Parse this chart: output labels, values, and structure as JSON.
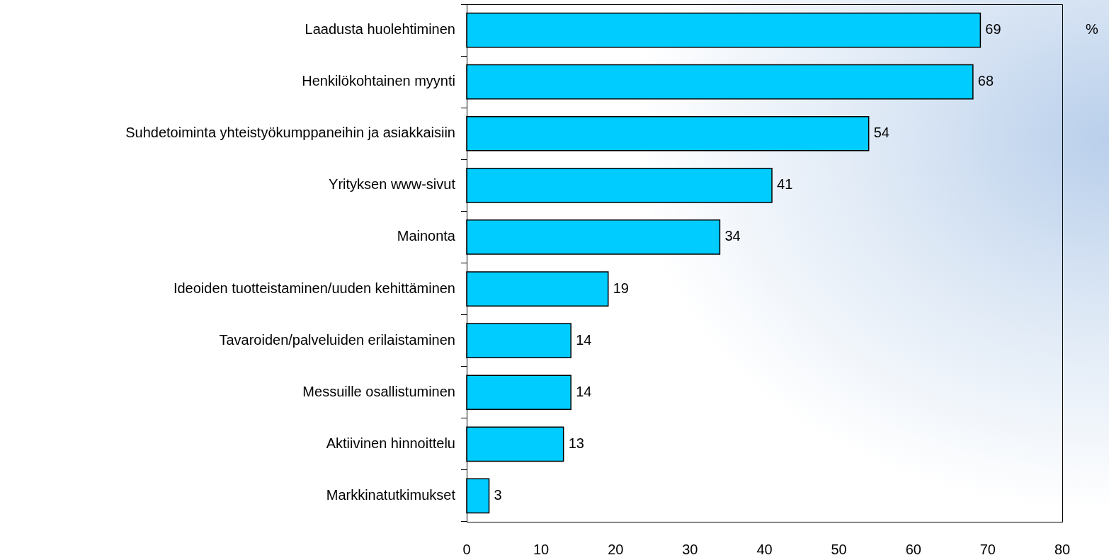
{
  "chart_data": {
    "type": "bar",
    "orientation": "horizontal",
    "categories": [
      "Laadusta huolehtiminen",
      "Henkilökohtainen myynti",
      "Suhdetoiminta yhteistyökumppaneihin ja asiakkaisiin",
      "Yrityksen www-sivut",
      "Mainonta",
      "Ideoiden tuotteistaminen/uuden kehittäminen",
      "Tavaroiden/palveluiden erilaistaminen",
      "Messuille osallistuminen",
      "Aktiivinen hinnoittelu",
      "Markkinatutkimukset"
    ],
    "values": [
      69,
      68,
      54,
      41,
      34,
      19,
      14,
      14,
      13,
      3
    ],
    "color": "#00ccff",
    "xlim": [
      0,
      80
    ],
    "xticks": [
      0,
      10,
      20,
      30,
      40,
      50,
      60,
      70,
      80
    ],
    "xlabel": "%",
    "data_labels": true
  }
}
